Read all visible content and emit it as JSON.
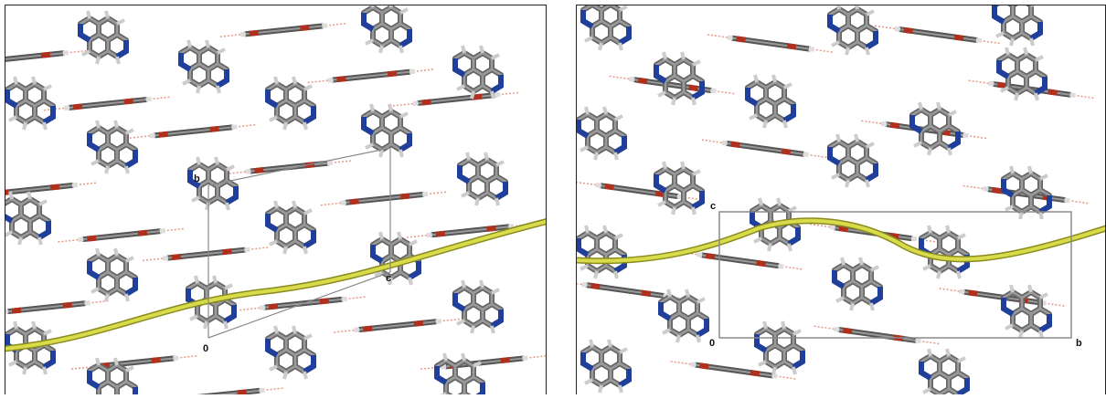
{
  "panels": [
    {
      "cell_labels": [
        "b",
        "c",
        "0"
      ]
    },
    {
      "cell_labels": [
        "c",
        "0",
        "b"
      ]
    }
  ]
}
